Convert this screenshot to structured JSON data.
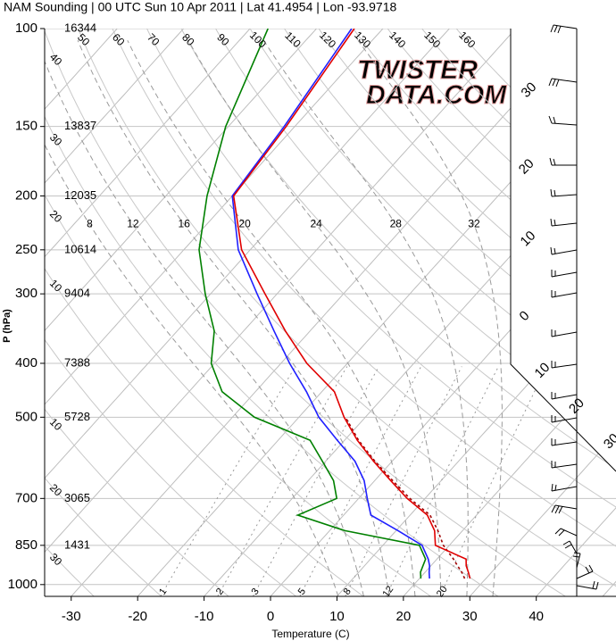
{
  "chart_data": {
    "type": "skewt",
    "title": "NAM Sounding | 00 UTC Sun 10 Apr 2011 | Lat 41.4954 | Lon -93.9718",
    "xlabel": "Temperature (C)",
    "ylabel": "P (hPa)",
    "watermark": [
      "TWISTER",
      "DATA.COM"
    ],
    "xlim": [
      -34,
      52
    ],
    "xticks": [
      -30,
      -20,
      -10,
      0,
      10,
      20,
      30,
      40
    ],
    "ylim": [
      1050,
      100
    ],
    "log_y": true,
    "yticks": [
      100,
      150,
      200,
      250,
      300,
      400,
      500,
      700,
      850,
      1000
    ],
    "heights": [
      16344,
      13837,
      12035,
      10614,
      9404,
      7388,
      5728,
      3065,
      1431,
      null
    ],
    "pressure": [
      975,
      950,
      925,
      900,
      850,
      800,
      750,
      700,
      650,
      600,
      550,
      500,
      450,
      400,
      350,
      300,
      250,
      200,
      150,
      100
    ],
    "series": [
      {
        "color": "#008000",
        "values": [
          20.2,
          19.3,
          18.8,
          18.3,
          15.5,
          2.3,
          -6.9,
          -3.3,
          -6.2,
          -10.5,
          -15.2,
          -26.7,
          -35.0,
          -40.5,
          -44.4,
          -50.8,
          -57.7,
          -63.8,
          -70.4,
          -77.3
        ]
      },
      {
        "color": "#2020ff",
        "values": [
          21.5,
          20.6,
          19.8,
          18.7,
          15.9,
          10.3,
          4.1,
          1.3,
          -1.6,
          -5.6,
          -11.1,
          -17.0,
          -22.3,
          -28.7,
          -35.4,
          -43.0,
          -51.8,
          -60.0,
          -61.6,
          -64.7
        ]
      },
      {
        "color": "#a00000",
        "dashed": true,
        "values": [
          26.8,
          25.5,
          24.0,
          22.5,
          19.1,
          16.3,
          13.0,
          7.7,
          2.7,
          -2.6,
          -7.9,
          -13.0,
          null,
          null,
          null,
          null,
          null,
          null,
          null,
          null
        ]
      },
      {
        "color": "#e00000",
        "values": [
          27.6,
          26.5,
          25.3,
          24.4,
          17.9,
          15.8,
          12.6,
          7.3,
          2.4,
          -2.8,
          -8.1,
          -13.2,
          -18.1,
          -26.1,
          -33.7,
          -41.8,
          -51.3,
          -59.8,
          -61.3,
          -64.3
        ]
      }
    ],
    "isotherms": [
      -100,
      -90,
      -80,
      -70,
      -60,
      -50,
      -40,
      -30,
      -20,
      -10,
      0,
      10,
      20,
      30,
      40,
      50
    ],
    "isotherm_labels": [
      null,
      null,
      null,
      null,
      null,
      null,
      null,
      "30",
      "20",
      "10",
      "0",
      "10",
      "20",
      "30",
      null,
      null
    ],
    "dry_adiabats": [
      -30,
      -20,
      -10,
      0,
      10,
      20,
      30,
      40,
      50,
      60,
      70,
      80,
      90,
      100,
      110,
      120,
      130,
      140,
      150,
      160
    ],
    "dry_adiabat_labels": [
      "30",
      "20",
      "10",
      null,
      "10",
      "20",
      "30",
      "40",
      "50",
      "60",
      "70",
      "80",
      "90",
      "100",
      "110",
      "120",
      "130",
      "140",
      "150",
      "160"
    ],
    "moist_adiabats": [
      8,
      12,
      16,
      20,
      24,
      28,
      32
    ],
    "mixing_ratios": [
      1,
      2,
      3,
      5,
      8,
      12,
      20
    ],
    "grid": true
  }
}
